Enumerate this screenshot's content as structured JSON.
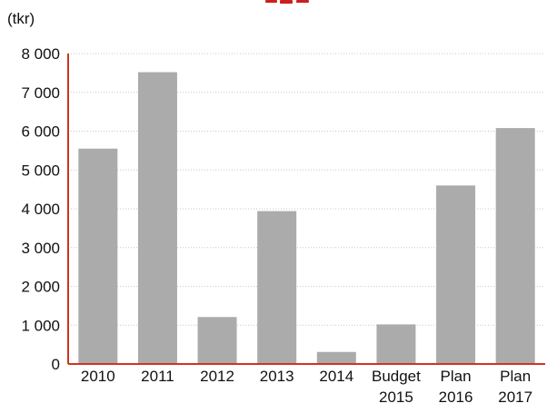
{
  "chart_data": {
    "type": "bar",
    "title": "",
    "ylabel": "(tkr)",
    "xlabel": "",
    "categories": [
      [
        "2010"
      ],
      [
        "2011"
      ],
      [
        "2012"
      ],
      [
        "2013"
      ],
      [
        "2014"
      ],
      [
        "Budget",
        "2015"
      ],
      [
        "Plan",
        "2016"
      ],
      [
        "Plan",
        "2017"
      ]
    ],
    "values": [
      5550,
      7520,
      1210,
      3940,
      310,
      1020,
      4600,
      6080
    ],
    "ylim": [
      0,
      8000
    ],
    "yticks": [
      0,
      1000,
      2000,
      3000,
      4000,
      5000,
      6000,
      7000,
      8000
    ],
    "ytick_labels": [
      "0",
      "1 000",
      "2 000",
      "3 000",
      "4 000",
      "5 000",
      "6 000",
      "7 000",
      "8 000"
    ],
    "grid": true,
    "colors": {
      "bar": "#ababab",
      "axis": "#d0351f",
      "grid": "#c9c9c9",
      "title_accent": "#cc1f1f"
    }
  }
}
